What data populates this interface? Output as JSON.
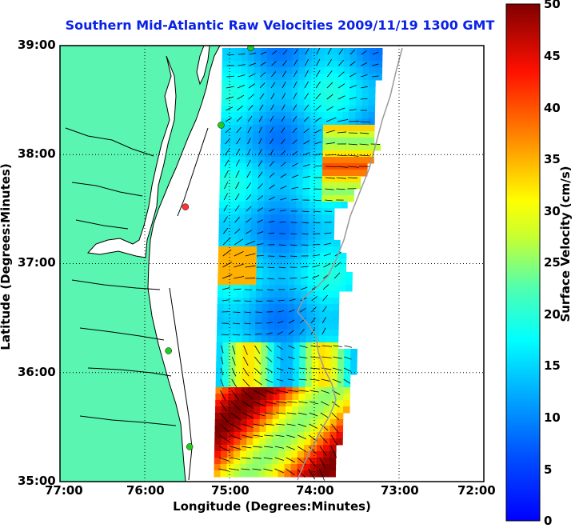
{
  "title": "Southern Mid-Atlantic Raw Velocities 2009/11/19 1300 GMT",
  "x_axis": {
    "label": "Longitude (Degrees:Minutes)",
    "ticks": [
      "77:00",
      "76:00",
      "75:00",
      "74:00",
      "73:00",
      "72:00"
    ]
  },
  "y_axis": {
    "label": "Latitude (Degrees:Minutes)",
    "ticks": [
      "39:00",
      "38:00",
      "37:00",
      "36:00",
      "35:00"
    ]
  },
  "colorbar": {
    "label": "Surface Velocity (cm/s)",
    "min": 0,
    "max": 50,
    "ticks": [
      "50",
      "45",
      "40",
      "35",
      "30",
      "25",
      "20",
      "15",
      "10",
      "5",
      "0"
    ],
    "colormap": "jet"
  },
  "map": {
    "lon_range": [
      -77,
      -72
    ],
    "lat_range": [
      35,
      39
    ],
    "grid": true,
    "land_color": "#5af5b0",
    "coastline_color": "#000000",
    "shelf_contour_color": "#999999",
    "station_color": "#22cc22",
    "station_alt_color": "#ff3333"
  },
  "stations": [
    {
      "lon": -74.75,
      "lat": 38.98,
      "status": "active"
    },
    {
      "lon": -75.1,
      "lat": 38.27,
      "status": "active"
    },
    {
      "lon": -75.52,
      "lat": 37.52,
      "status": "inactive"
    },
    {
      "lon": -75.72,
      "lat": 36.2,
      "status": "active"
    },
    {
      "lon": -75.47,
      "lat": 35.32,
      "status": "active"
    }
  ]
}
